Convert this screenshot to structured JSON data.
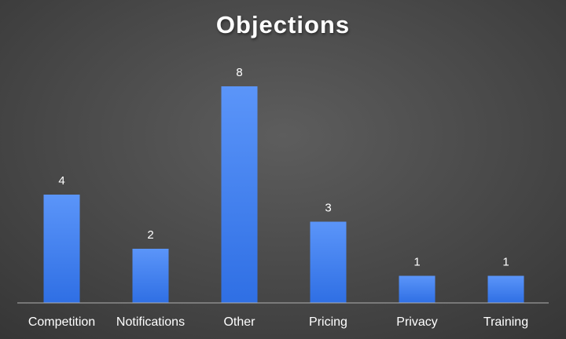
{
  "chart_data": {
    "type": "bar",
    "title": "Objections",
    "categories": [
      "Competition",
      "Notifications",
      "Other",
      "Pricing",
      "Privacy",
      "Training"
    ],
    "values": [
      4,
      2,
      8,
      3,
      1,
      1
    ],
    "xlabel": "",
    "ylabel": "",
    "ylim": [
      0,
      8
    ],
    "grid": false,
    "data_labels": true,
    "colors": {
      "bar_top": "#5b95f9",
      "bar_bottom": "#2f6fe4",
      "axis": "#b0b0b0",
      "text": "#ffffff"
    }
  }
}
